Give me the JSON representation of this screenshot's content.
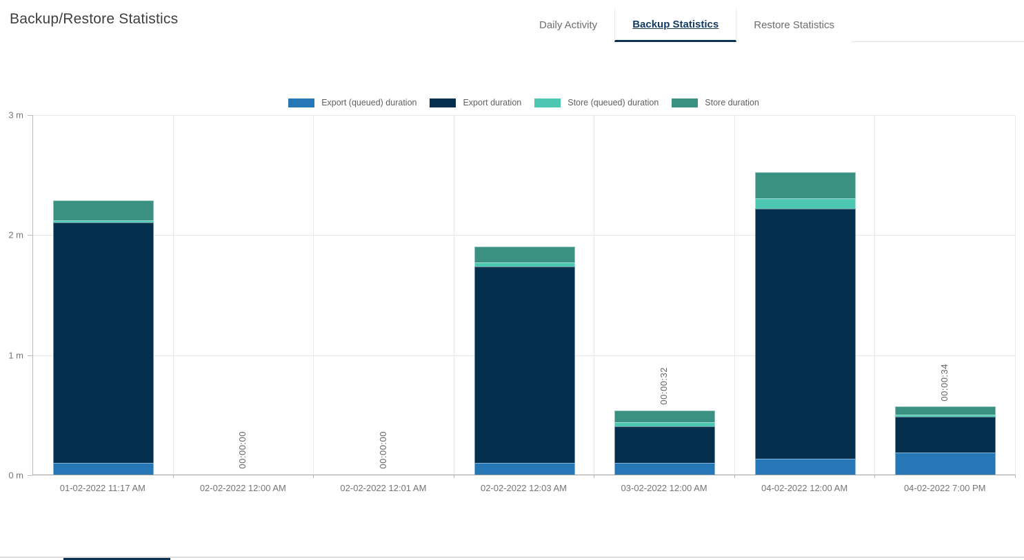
{
  "page": {
    "title": "Backup/Restore Statistics"
  },
  "tabs": [
    {
      "label": "Daily Activity",
      "active": false
    },
    {
      "label": "Backup Statistics",
      "active": true
    },
    {
      "label": "Restore Statistics",
      "active": false
    }
  ],
  "colors": {
    "export_queued": "#2577b5",
    "export": "#04304e",
    "store_queued": "#4dc6b2",
    "store": "#3a9181",
    "active_tab_text": "#14395e",
    "active_tab_underline": "#0c3151",
    "grid": "#e7e7e7",
    "axis_text": "#757575"
  },
  "chart_data": {
    "type": "bar",
    "stacked": true,
    "unit": "seconds",
    "title": "",
    "xlabel": "",
    "ylabel": "",
    "ylim_minutes": [
      0,
      3
    ],
    "y_ticks": [
      {
        "label": "0 m",
        "minutes": 0
      },
      {
        "label": "1 m",
        "minutes": 1
      },
      {
        "label": "2 m",
        "minutes": 2
      },
      {
        "label": "3 m",
        "minutes": 3
      }
    ],
    "grid": true,
    "legend_position": "top",
    "categories": [
      "01-02-2022 11:17 AM",
      "02-02-2022 12:00 AM",
      "02-02-2022 12:01 AM",
      "02-02-2022 12:03 AM",
      "03-02-2022 12:00 AM",
      "04-02-2022 12:00 AM",
      "04-02-2022 7:00 PM"
    ],
    "series": [
      {
        "name": "Export (queued) duration",
        "color": "#2577b5",
        "values": [
          6,
          0,
          0,
          6,
          6,
          8,
          11
        ]
      },
      {
        "name": "Export duration",
        "color": "#04304e",
        "values": [
          120,
          0,
          0,
          98,
          18,
          125,
          18
        ]
      },
      {
        "name": "Store (queued) duration",
        "color": "#4dc6b2",
        "values": [
          1,
          0,
          0,
          2,
          2,
          5,
          1
        ]
      },
      {
        "name": "Store duration",
        "color": "#3a9181",
        "values": [
          10,
          0,
          0,
          8,
          6,
          13,
          4
        ]
      }
    ],
    "bar_value_labels": [
      "",
      "00:00:00",
      "00:00:00",
      "",
      "00:00:32",
      "",
      "00:00:34"
    ]
  }
}
